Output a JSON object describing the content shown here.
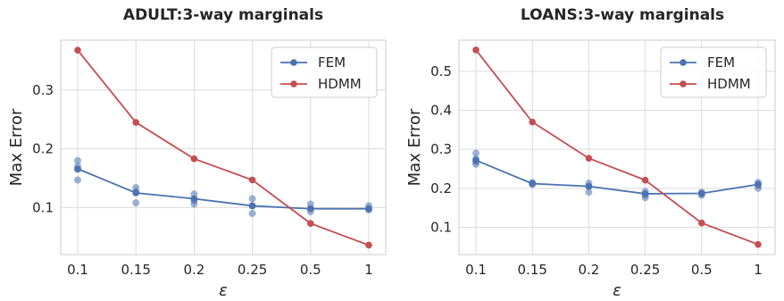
{
  "chart_data": [
    {
      "type": "line",
      "title": "ADULT:3-way marginals",
      "xlabel": "ε",
      "ylabel": "Max Error",
      "categories": [
        "0.1",
        "0.15",
        "0.2",
        "0.25",
        "0.5",
        "1"
      ],
      "ylim": [
        0.02,
        0.385
      ],
      "yticks": [
        0.1,
        0.2,
        0.3
      ],
      "ytick_labels": [
        "0.1",
        "0.2",
        "0.3"
      ],
      "grid": true,
      "legend": "top-right",
      "series": [
        {
          "name": "FEM",
          "color": "#4c72b0",
          "values": [
            0.166,
            0.125,
            0.115,
            0.103,
            0.098,
            0.098
          ]
        },
        {
          "name": "HDMM",
          "color": "#c44e52",
          "values": [
            0.368,
            0.245,
            0.183,
            0.147,
            0.073,
            0.036
          ]
        }
      ],
      "scatter": {
        "name": "FEM runs",
        "color": "#4c72b0",
        "points": [
          [
            0,
            0.18
          ],
          [
            0,
            0.17
          ],
          [
            0,
            0.165
          ],
          [
            0,
            0.147
          ],
          [
            1,
            0.134
          ],
          [
            1,
            0.127
          ],
          [
            1,
            0.108
          ],
          [
            2,
            0.123
          ],
          [
            2,
            0.112
          ],
          [
            2,
            0.106
          ],
          [
            3,
            0.115
          ],
          [
            3,
            0.103
          ],
          [
            3,
            0.09
          ],
          [
            4,
            0.106
          ],
          [
            4,
            0.098
          ],
          [
            4,
            0.093
          ],
          [
            5,
            0.103
          ],
          [
            5,
            0.098
          ],
          [
            5,
            0.096
          ]
        ]
      }
    },
    {
      "type": "line",
      "title": "LOANS:3-way marginals",
      "xlabel": "ε",
      "ylabel": "Max Error",
      "categories": [
        "0.1",
        "0.15",
        "0.2",
        "0.25",
        "0.5",
        "1"
      ],
      "ylim": [
        0.03,
        0.58
      ],
      "yticks": [
        0.1,
        0.2,
        0.3,
        0.4,
        0.5
      ],
      "ytick_labels": [
        "0.1",
        "0.2",
        "0.3",
        "0.4",
        "0.5"
      ],
      "grid": true,
      "legend": "top-right",
      "series": [
        {
          "name": "FEM",
          "color": "#4c72b0",
          "values": [
            0.272,
            0.212,
            0.205,
            0.186,
            0.187,
            0.21
          ]
        },
        {
          "name": "HDMM",
          "color": "#c44e52",
          "values": [
            0.555,
            0.37,
            0.277,
            0.221,
            0.111,
            0.056
          ]
        }
      ],
      "scatter": {
        "name": "FEM runs",
        "color": "#4c72b0",
        "points": [
          [
            0,
            0.29
          ],
          [
            0,
            0.275
          ],
          [
            0,
            0.268
          ],
          [
            0,
            0.262
          ],
          [
            1,
            0.215
          ],
          [
            1,
            0.21
          ],
          [
            2,
            0.213
          ],
          [
            2,
            0.205
          ],
          [
            2,
            0.19
          ],
          [
            3,
            0.192
          ],
          [
            3,
            0.183
          ],
          [
            3,
            0.176
          ],
          [
            4,
            0.19
          ],
          [
            4,
            0.186
          ],
          [
            4,
            0.182
          ],
          [
            5,
            0.215
          ],
          [
            5,
            0.208
          ],
          [
            5,
            0.2
          ]
        ]
      }
    }
  ]
}
